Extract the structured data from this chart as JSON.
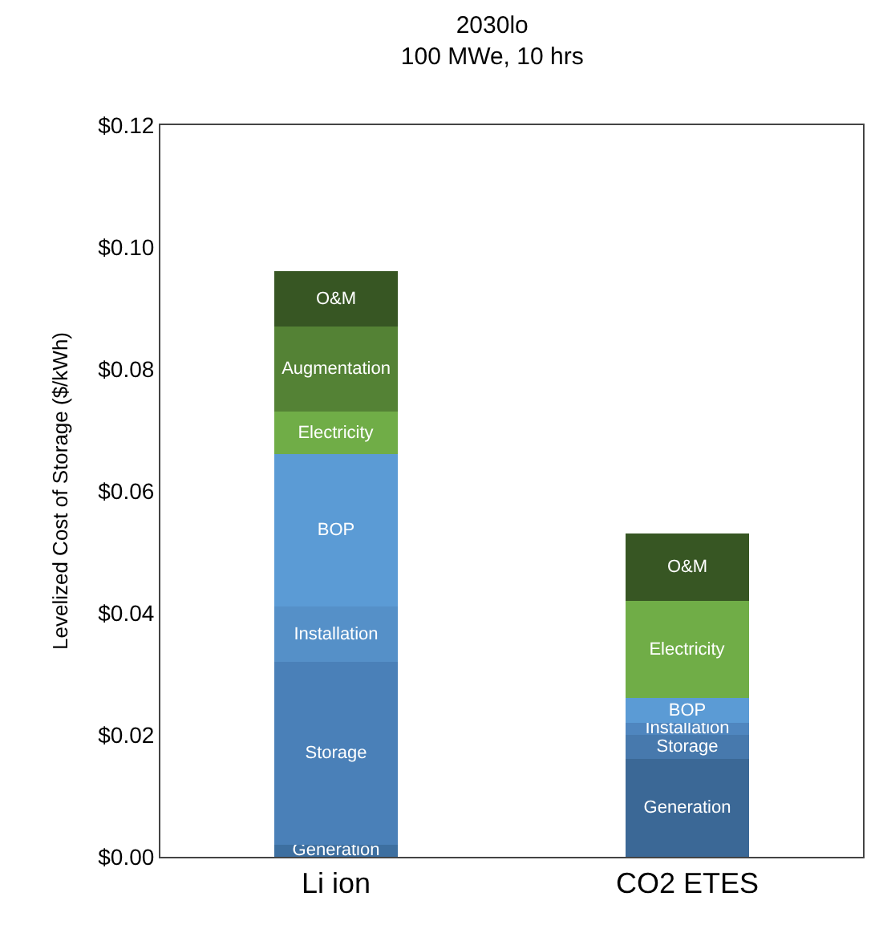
{
  "chart_data": {
    "type": "bar",
    "title": "2030lo",
    "subtitle": "100 MWe, 10 hrs",
    "ylabel": "Levelized Cost of Storage ($/kWh)",
    "categories": [
      "Li ion",
      "CO2 ETES"
    ],
    "stacked": true,
    "legend": false,
    "ylim": [
      0,
      0.12
    ],
    "yticks": [
      {
        "value": 0,
        "label": "$0.00"
      },
      {
        "value": 0.02,
        "label": "$0.02"
      },
      {
        "value": 0.04,
        "label": "$0.04"
      },
      {
        "value": 0.06,
        "label": "$0.06"
      },
      {
        "value": 0.08,
        "label": "$0.08"
      },
      {
        "value": 0.1,
        "label": "$0.10"
      },
      {
        "value": 0.12,
        "label": "$0.12"
      }
    ],
    "series": [
      {
        "name": "Generation",
        "colors": [
          "#3d6fa0",
          "#3b6896"
        ],
        "values": [
          0.002,
          0.016
        ]
      },
      {
        "name": "Storage",
        "colors": [
          "#4a80b8",
          "#4779ad"
        ],
        "values": [
          0.03,
          0.004
        ]
      },
      {
        "name": "Installation",
        "colors": [
          "#5590c8",
          "#4f86bf"
        ],
        "values": [
          0.009,
          0.002
        ]
      },
      {
        "name": "BOP",
        "colors": [
          "#5b9bd5",
          "#5b9bd5"
        ],
        "values": [
          0.025,
          0.004
        ]
      },
      {
        "name": "Electricity",
        "colors": [
          "#70ad47",
          "#70ad47"
        ],
        "values": [
          0.007,
          0.016
        ]
      },
      {
        "name": "Augmentation",
        "colors": [
          "#548235",
          "#548235"
        ],
        "values": [
          0.014,
          null
        ]
      },
      {
        "name": "O&M",
        "colors": [
          "#375623",
          "#375623"
        ],
        "values": [
          0.009,
          0.011
        ]
      }
    ]
  }
}
